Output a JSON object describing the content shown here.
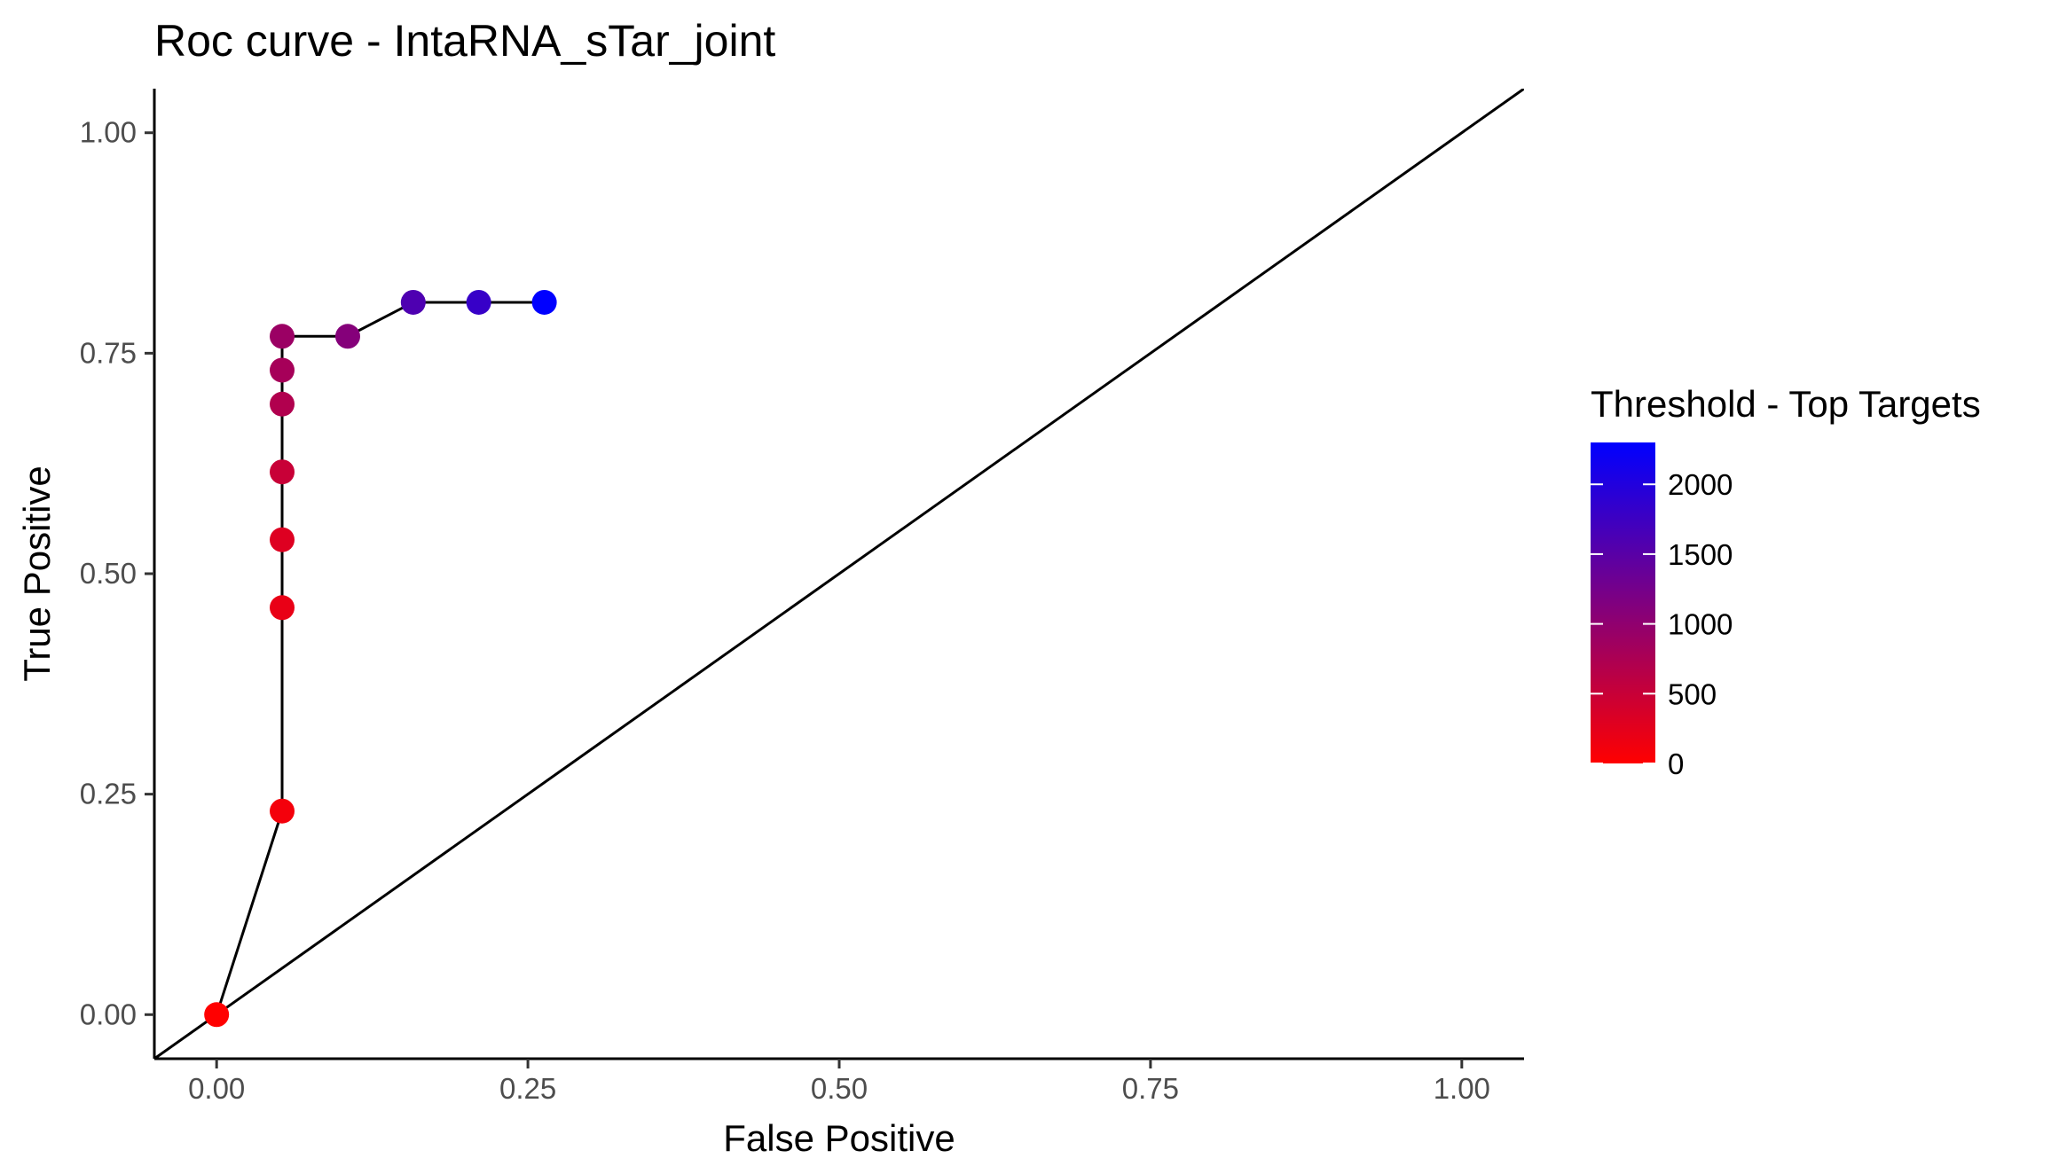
{
  "chart_data": {
    "type": "scatter",
    "title": "Roc curve - IntaRNA_sTar_joint",
    "xlabel": "False Positive",
    "ylabel": "True Positive",
    "xlim": [
      -0.05,
      1.05
    ],
    "ylim": [
      -0.05,
      1.05
    ],
    "x_ticks": [
      0,
      0.25,
      0.5,
      0.75,
      1
    ],
    "x_tick_labels": [
      "0.00",
      "0.25",
      "0.50",
      "0.75",
      "1.00"
    ],
    "y_ticks": [
      0,
      0.25,
      0.5,
      0.75,
      1
    ],
    "y_tick_labels": [
      "0.00",
      "0.25",
      "0.50",
      "0.75",
      "1.00"
    ],
    "grid": false,
    "reference_line": {
      "intercept": 0,
      "slope": 1
    },
    "connect_points": true,
    "color_low": "#ff0000",
    "color_high": "#0000ff",
    "points": [
      {
        "x": 0.0,
        "y": 0.0,
        "threshold": 0
      },
      {
        "x": 0.0526,
        "y": 0.2308,
        "threshold": 100
      },
      {
        "x": 0.0526,
        "y": 0.4615,
        "threshold": 200
      },
      {
        "x": 0.0526,
        "y": 0.5385,
        "threshold": 300
      },
      {
        "x": 0.0526,
        "y": 0.6154,
        "threshold": 500
      },
      {
        "x": 0.0526,
        "y": 0.6923,
        "threshold": 700
      },
      {
        "x": 0.0526,
        "y": 0.7308,
        "threshold": 800
      },
      {
        "x": 0.0526,
        "y": 0.7692,
        "threshold": 900
      },
      {
        "x": 0.1053,
        "y": 0.7692,
        "threshold": 1100
      },
      {
        "x": 0.1579,
        "y": 0.8077,
        "threshold": 1600
      },
      {
        "x": 0.2105,
        "y": 0.8077,
        "threshold": 1800
      },
      {
        "x": 0.2632,
        "y": 0.8077,
        "threshold": 2300
      }
    ],
    "legend": {
      "title": "Threshold - Top Targets",
      "placement": "right",
      "min": 0,
      "max": 2300,
      "breaks": [
        0,
        500,
        1000,
        1500,
        2000
      ],
      "break_labels": [
        "0",
        "500",
        "1000",
        "1500",
        "2000"
      ]
    }
  }
}
